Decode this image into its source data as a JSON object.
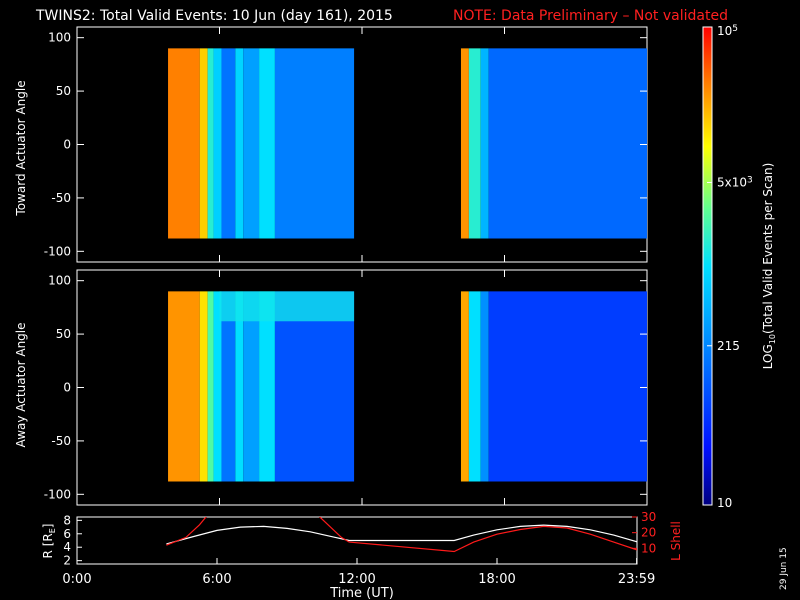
{
  "title": {
    "main": "TWINS2: Total Valid Events: 10 Jun (day 161), 2015",
    "note": "NOTE: Data Preliminary – Not validated",
    "note_color": "#ff2020"
  },
  "side_date": "29 Jun 15",
  "chart_data": [
    {
      "type": "heatmap",
      "ylabel": "Toward Actuator Angle",
      "xlim_hours": [
        0,
        24
      ],
      "ylim": [
        -110,
        110
      ],
      "yticks": [
        100,
        50,
        0,
        -50,
        -100
      ],
      "blocks": [
        {
          "start": "03:50",
          "end": "11:40",
          "angle_range": [
            -88,
            90
          ]
        },
        {
          "start": "16:10",
          "end": "24:00",
          "angle_range": [
            -88,
            90
          ]
        }
      ],
      "log10_total_valid_events": [
        {
          "start": "03:50",
          "end": "05:10",
          "level": 0.88
        },
        {
          "start": "05:10",
          "end": "05:30",
          "level": 0.8
        },
        {
          "start": "05:30",
          "end": "05:45",
          "level": 0.55
        },
        {
          "start": "05:45",
          "end": "06:05",
          "level": 0.47
        },
        {
          "start": "06:05",
          "end": "06:40",
          "level": 0.3
        },
        {
          "start": "06:40",
          "end": "07:00",
          "level": 0.48
        },
        {
          "start": "07:00",
          "end": "07:40",
          "level": 0.38
        },
        {
          "start": "07:40",
          "end": "08:20",
          "level": 0.5
        },
        {
          "start": "08:20",
          "end": "11:40",
          "level": 0.32
        },
        {
          "start": "16:10",
          "end": "16:30",
          "level": 0.86
        },
        {
          "start": "16:30",
          "end": "17:00",
          "level": 0.55
        },
        {
          "start": "17:00",
          "end": "17:20",
          "level": 0.42
        },
        {
          "start": "17:20",
          "end": "24:00",
          "level": 0.28
        }
      ]
    },
    {
      "type": "heatmap",
      "ylabel": "Away Actuator Angle",
      "xlim_hours": [
        0,
        24
      ],
      "ylim": [
        -110,
        110
      ],
      "yticks": [
        100,
        50,
        0,
        -50,
        -100
      ],
      "blocks": [
        {
          "start": "03:50",
          "end": "11:40",
          "angle_range": [
            -88,
            90
          ]
        },
        {
          "start": "16:10",
          "end": "24:00",
          "angle_range": [
            -88,
            90
          ]
        }
      ],
      "log10_total_valid_events": [
        {
          "start": "03:50",
          "end": "05:10",
          "level": 0.86
        },
        {
          "start": "05:10",
          "end": "05:30",
          "level": 0.78
        },
        {
          "start": "05:30",
          "end": "05:45",
          "level": 0.6
        },
        {
          "start": "05:45",
          "end": "06:05",
          "level": 0.5
        },
        {
          "start": "06:05",
          "end": "06:40",
          "level": 0.3
        },
        {
          "start": "06:40",
          "end": "07:00",
          "level": 0.5
        },
        {
          "start": "07:00",
          "end": "07:40",
          "level": 0.38
        },
        {
          "start": "07:40",
          "end": "08:20",
          "level": 0.5
        },
        {
          "start": "08:20",
          "end": "11:40",
          "level": 0.24
        },
        {
          "start": "16:10",
          "end": "16:30",
          "level": 0.84
        },
        {
          "start": "16:30",
          "end": "17:00",
          "level": 0.5
        },
        {
          "start": "17:00",
          "end": "17:20",
          "level": 0.35
        },
        {
          "start": "17:20",
          "end": "24:00",
          "level": 0.2
        }
      ],
      "enhancement": {
        "start": "06:00",
        "end": "11:40",
        "angle_range": [
          62,
          90
        ],
        "level": 0.52
      }
    },
    {
      "type": "line",
      "ylabel_left": "R [R",
      "ylabel_left_sub": "E",
      "ylabel_left_close": "]",
      "ylabel_right": "L Shell",
      "ylim_left": [
        1.5,
        8.5
      ],
      "ylim_right": [
        0,
        30
      ],
      "yticks_left": [
        2,
        4,
        6,
        8
      ],
      "yticks_right": [
        10,
        20,
        30
      ],
      "xlim_hours": [
        0,
        24
      ],
      "xticks": [
        "0:00",
        "6:00",
        "12:00",
        "18:00",
        "23:59"
      ],
      "xlabel": "Time (UT)",
      "series": [
        {
          "axis": "left",
          "color": "#ffffff",
          "x": [
            "03:50",
            "05:00",
            "06:00",
            "07:00",
            "08:00",
            "09:00",
            "10:00",
            "11:00",
            "11:40",
            "16:10",
            "17:00",
            "18:00",
            "19:00",
            "20:00",
            "21:00",
            "22:00",
            "23:00",
            "24:00"
          ],
          "y": [
            4.5,
            5.6,
            6.5,
            7.0,
            7.1,
            6.8,
            6.3,
            5.5,
            5.0,
            5.0,
            5.8,
            6.6,
            7.1,
            7.3,
            7.1,
            6.6,
            5.8,
            4.8
          ]
        },
        {
          "axis": "right",
          "color": "#ff1a1a",
          "x": [
            "03:50",
            "04:40",
            "05:15",
            "05:35",
            null,
            "10:20",
            "10:50",
            "11:20",
            "11:40",
            "16:10",
            "17:00",
            "18:00",
            "19:00",
            "20:00",
            "21:00",
            "22:00",
            "23:00",
            "24:00"
          ],
          "y": [
            12,
            17,
            25,
            31,
            null,
            31,
            24,
            17,
            14,
            8,
            14,
            19,
            22,
            24,
            23,
            19,
            14,
            9
          ]
        }
      ]
    }
  ],
  "colorbar": {
    "label": "LOG",
    "label_sub": "10",
    "label_rest": "(Total Valid Events per Scan)",
    "scale": "log",
    "range": [
      10,
      100000
    ],
    "ticks": [
      {
        "mantissa": "10",
        "exp": "5",
        "value": 100000
      },
      {
        "mantissa": "5x10",
        "exp": "3",
        "value": 5000
      },
      {
        "mantissa": "215",
        "exp": "",
        "value": 215
      },
      {
        "mantissa": "10",
        "exp": "",
        "value": 10
      }
    ]
  }
}
